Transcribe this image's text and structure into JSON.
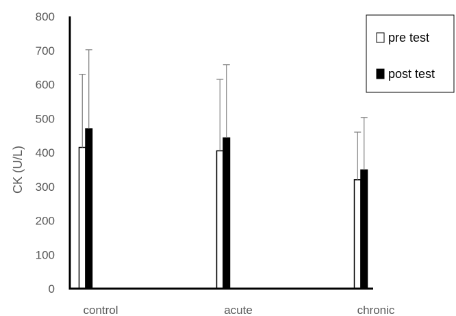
{
  "chart_data": {
    "type": "bar",
    "title": "",
    "xlabel": "",
    "ylabel": "CK (U/L)",
    "ylim": [
      0,
      800
    ],
    "yticks": [
      0,
      100,
      200,
      300,
      400,
      500,
      600,
      700,
      800
    ],
    "categories": [
      "control",
      "acute",
      "chronic"
    ],
    "series": [
      {
        "name": "pre test",
        "fill": "#ffffff",
        "values": [
          415,
          405,
          320
        ],
        "error_upper": [
          215,
          210,
          140
        ]
      },
      {
        "name": "post test",
        "fill": "#000000",
        "values": [
          470,
          443,
          349
        ],
        "error_upper": [
          232,
          215,
          154
        ]
      }
    ],
    "grid": false,
    "legend": "top-right"
  }
}
